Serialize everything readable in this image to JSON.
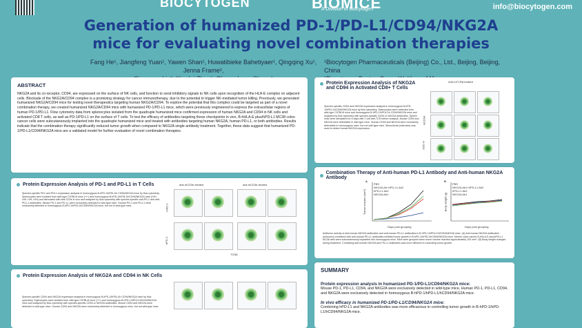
{
  "header": {
    "brand_left": "BIOCYTOGEN",
    "brand_right": "BIOMICE",
    "brand_right_sub": "A Division of Biocytogen",
    "email": "info@biocytogen.com"
  },
  "title_line1": "Generation of humanized PD-1/PD-L1/CD94/NKG2A",
  "title_line2": "mice for evaluating novel combination therapies",
  "authors_line1": "Fang He¹, Jiangfeng Yuan¹, Yawen Shan¹, Huwatibieke Bahetiyaer¹, Qingqing Xu¹, Jenna Frame²,",
  "authors_line2": "Qingcong Lin², Xiaofei Zhou¹, Chengzhang Shang¹",
  "affil_line1": "¹Biocytogen Pharmaceuticals (Beijing) Co., Ltd., Beijing, Beijing, China",
  "affil_line2": "²Biocytogen Boston Corp., Waltham, MA",
  "abstract": {
    "heading": "ABSTRACT",
    "text": "NKG2A and its co-receptor, CD94, are expressed on the surface of NK cells, and function to send inhibitory signals to NK cells upon recognition of the HLA-E complex on adjacent cells. Blockade of the NKG2A/CD94 complex is a promising strategy for cancer immunotherapy, due to the potential to trigger NK-mediated tumor killing. Previously, we generated humanized NKG2A/CD94 mice for testing novel therapeutics targeting human NKG2A/CD94. To explore the potential that this complex could be targeted as part of a novel combination therapy, we created humanized NKG2A/CD94 mice with humanized PD-1/PD-L1 mice, which were previously engineered to express the extracellular regions of human PD-1/PD-L1. Flow cytometry data from splenocytes isolated from the quadruple humanized mice confirmed expression of human NKG2A and CD94 in NK cells and activated CD8 T cells, as well as PD-1/PD-L1 on the surface of T cells. To test the efficacy of antibodies targeting these checkpoints in vivo, B-hHLA-E plus/hPD-L1 MC38 colon cancer cells were subcutaneously implanted into the quadruple humanized mice and treated with antibodies targeting human NKG2A, human PD-L1, or both antibodies. Results indicate that the combination therapy significantly reduced tumor growth when compared to NKG2A single antibody treatment. Together, these data suggest that humanized PD-1/PD-L1/CD94/NKG2A mice are a validated model for further evaluation of novel combination therapies."
  },
  "panel_pd1": {
    "heading": "Protein Expression Analysis of PD-1 and PD-L1 in T Cells",
    "caption": "Species-specific PD1 and PDL1 expression analysis in homozygous B-hPD-1/hPDL1/h CD94/NKG2A mice by flow cytometry. Splenocytes were isolated from wild-type C57BL/6 mice (+/+) and homozygous B-hPD-1/hPDL1/hCD94/NKG2A mice (H/H, H/H, H/H, H/H) and stimulated with anti-CD3e in vivo and analyzed by flow cytometry with species-specific anti-PD-1 and anti-PD-L1 antibodies. Mouse PD-1 and PD-L1 were exclusively detected in wild-type mice. Human PD-1 and PD-L1 were exclusively detected in homozygous B-hPD-1/hPDL1/hCD94/NKG2A mice, but not in wild-type mice.",
    "group_label": "anti-mCD3e-treated",
    "axis_x": "TCRβ",
    "axis_y1": "mPD-1",
    "axis_y2": "hPD-1"
  },
  "panel_cd94": {
    "heading": "Protein Expression Analysis of NKG2A and CD94 in NK Cells",
    "caption": "Species-specific CD94 and NKG2A expression analysis in homozygous B-hPD-1/hPDL1/h CD94/NKG2A mice by flow cytometry. Splenocytes were isolated from wild-type C57BL/6 mice (+/+) and homozygous B-hPD-1/hPDL1/hCD94/NKG2A mice and analyzed by flow cytometry with species-specific CD94 or NKG2A antibodies. Mouse CD94 and NKG2A were detected in wild-type mice. Human CD94 and NKG2A were exclusively detected in homozygous mice, but not wild-type mice."
  },
  "panel_cd8": {
    "heading": "Protein Expression Analysis of NKG2A and CD94 in Activated CD8+ T Cells",
    "caption": "Species-specific CD94 and NKG2A expression analysis in homozygous B-hPD-1/hPDL1/hCD94/NKG2A mice by flow cytometry. Splenocytes were collected from wild-type C57BL/6 mice and homozygous B-hPD-1/hPDL1/h CD94/NKG2A mice and analyzed by flow cytometry with species-specific CD94 or NKG2A antibodies. Spleen cells were stimulated for 5 days with T-cell anti-TCR before analysis. Mouse CD94 and NKG2A were detectable in wild-type mice. Human CD94 and NKG2A were exclusively detectable in homozygous mice, but not wild-type mice. Monoclonal (unknown) was used to detect human NKG2A expression.",
    "group_label": "Anti-mTCRβ-treated",
    "axis_y": "mCD94",
    "axis_x": "SSC-H"
  },
  "panel_combo": {
    "heading": "Combination Therapy of Anti-human PD-L1 Antibody and Anti-human NKG2A Antibody",
    "chartA_letter": "A",
    "chartB_letter": "B",
    "chartA_ylabel": "Tumor volume (mm³)",
    "chartB_ylabel": "Body weight (g)",
    "xlabel": "Days post grouping",
    "legendA": [
      "PBS",
      "NKG2A Ab+hPD-L1 Ab2",
      "hPD-L1 Ab2",
      "NKG2A Ab1"
    ],
    "legendB": [
      "PBS",
      "NKG2A Ab1+hPD-L1 Ab2",
      "hPD-L1 Ab2",
      "NKG2A Ab1"
    ],
    "xticks": [
      "0",
      "7",
      "14",
      "21"
    ],
    "caption": "Antitumor activity of anti-human NKG2A antibodies and anti-human PD-L1 antibodies in B-hPD-1/hPDL1/hCD94/NKG2A mice. (A) Anti-human NKG2A antibodies (unknown) combined with anti-human PD-L1 antibodies inhibited tumor growth in B-hPD-1/hPDL1/hCD94/NKG2A mice. Murine colon cancer B-hHLA-E plus/hPD-L1 MC38 cells were subcutaneously implanted into homozygous mice. Mice were grouped when tumor volume reached approximately 100 mm³. (B) Body weight changes during treatment. Combining anti-human NKG2A and PD-L1 antibodies was more effective in controlling tumor growth."
  },
  "summary": {
    "heading": "SUMMARY",
    "h1": "Protein expression analysis in humanized PD-1/PD-L1/CD94/NKG2A mice:",
    "t1": "Mouse PD-1, PD-L1, CD94, and NKG2A were exclusively detected in wild-type mice, Human PD-1, PD-L1, CD94, and NKG2A were exclusively detected in homozygous B-hPD-1/hPD-L1/hCD94/NKG2A mice.",
    "h2": "In vivo efficacy in humanized PD-1/PD-L1/CD94/NKG2A mice:",
    "t2": "Combining hPD-L1 and NKG2A antibodies was more efficacious in controlling tumor growth in B-hPD-1/hPD-L1/hCD94/NKG2A mice."
  },
  "colors": {
    "bg": "#5fb3b8",
    "title": "#1f3f8f"
  }
}
